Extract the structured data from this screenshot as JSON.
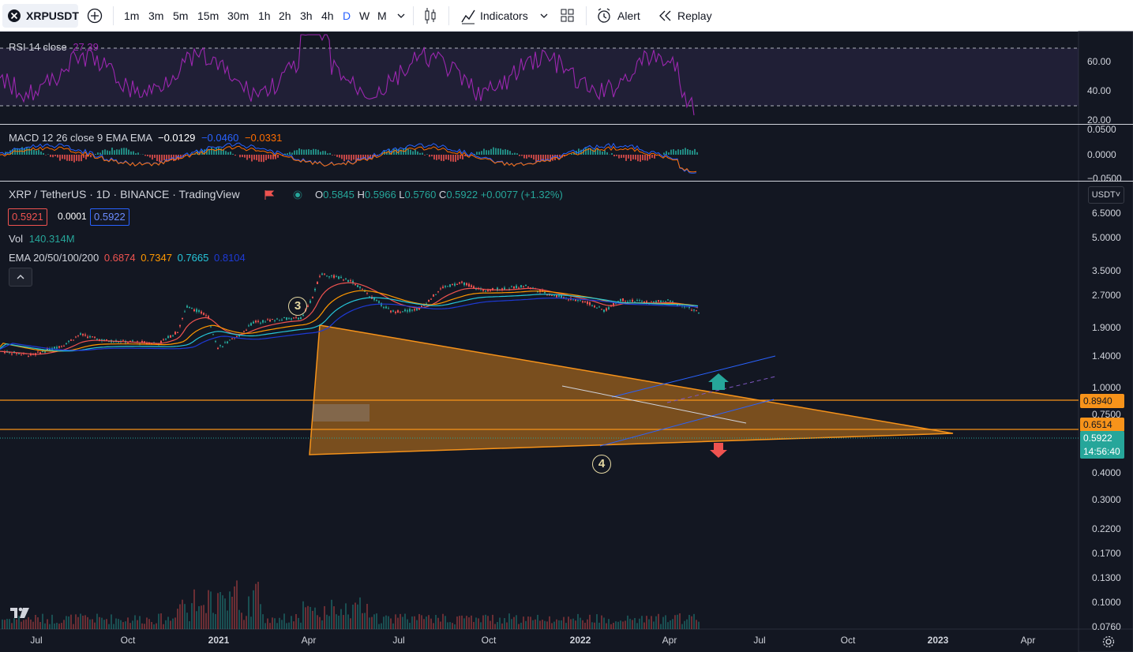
{
  "toolbar": {
    "symbol": "XRPUSDT",
    "intervals": [
      "1m",
      "3m",
      "5m",
      "15m",
      "30m",
      "1h",
      "2h",
      "3h",
      "4h",
      "D",
      "W",
      "M"
    ],
    "active_interval": "D",
    "indicators_label": "Indicators",
    "alert_label": "Alert",
    "replay_label": "Replay"
  },
  "rsi": {
    "title": "RSI 14 close",
    "value": "27.39",
    "scale": [
      "60.00",
      "40.00",
      "20.00"
    ]
  },
  "macd": {
    "title": "MACD 12 26 close 9 EMA EMA",
    "v1": "−0.0129",
    "v2": "−0.0460",
    "v3": "−0.0331",
    "scale": [
      "0.0500",
      "0.0000",
      "−0.0500"
    ]
  },
  "main": {
    "title": "XRP / TetherUS · 1D · BINANCE · TradingView",
    "ohlc": {
      "o_label": "O",
      "o": "0.5845",
      "h_label": "H",
      "h": "0.5966",
      "l_label": "L",
      "l": "0.5760",
      "c_label": "C",
      "c": "0.5922",
      "chg": "+0.0077 (+1.32%)"
    },
    "bid": "0.5921",
    "spread": "0.0001",
    "ask": "0.5922",
    "vol_label": "Vol",
    "vol": "140.314M",
    "ema_label": "EMA 20/50/100/200",
    "ema20": "0.6874",
    "ema50": "0.7347",
    "ema100": "0.7665",
    "ema200": "0.8104",
    "currency": "USDT",
    "wave3": "3",
    "wave4": "4"
  },
  "price_scale": [
    "6.5000",
    "5.0000",
    "3.5000",
    "2.7000",
    "1.9000",
    "1.4000",
    "1.0000",
    "0.7500",
    "0.4000",
    "0.3000",
    "0.2200",
    "0.1700",
    "0.1300",
    "0.1000",
    "0.0760"
  ],
  "price_labels": {
    "upper": "0.8940",
    "lower": "0.6514",
    "last": "0.5922",
    "countdown": "14:56:40"
  },
  "time_axis": [
    "Jul",
    "Oct",
    "2021",
    "Apr",
    "Jul",
    "Oct",
    "2022",
    "Apr",
    "Jul",
    "Oct",
    "2023",
    "Apr"
  ],
  "colors": {
    "background": "#131722",
    "up": "#26a69a",
    "down": "#ef5350",
    "triangle": "#f7931a",
    "rsi": "#9c27b0",
    "macd_line": "#2962ff",
    "signal_line": "#ff6d00"
  }
}
